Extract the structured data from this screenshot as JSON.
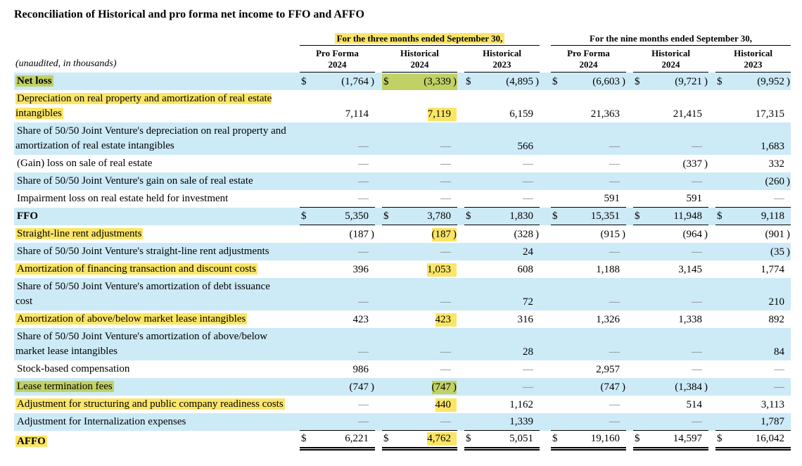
{
  "title": "Reconciliation of Historical and pro forma net income to FFO and AFFO",
  "highlight_colors": {
    "yellow": "#fbe567",
    "green": "#c1d166",
    "row_shade_blue": "#cdeaf7"
  },
  "table": {
    "unaudited_note": "(unaudited, in thousands)",
    "groups": [
      {
        "label": "For the three months ended September 30,",
        "highlight": "yellow"
      },
      {
        "label": "For the nine months ended September 30,",
        "highlight": null
      }
    ],
    "columns": [
      {
        "line1": "Pro Forma",
        "line2": "2024"
      },
      {
        "line1": "Historical",
        "line2": "2024"
      },
      {
        "line1": "Historical",
        "line2": "2023"
      },
      {
        "line1": "Pro Forma",
        "line2": "2024"
      },
      {
        "line1": "Historical",
        "line2": "2024"
      },
      {
        "line1": "Historical",
        "line2": "2023"
      }
    ],
    "rows": [
      {
        "label": "Net loss",
        "bold": true,
        "shaded": true,
        "dollar": true,
        "label_hl": "green",
        "values": [
          "(1,764)",
          "(3,339)",
          "(4,895)",
          "(6,603)",
          "(9,721)",
          "(9,952)"
        ],
        "val_hl": {
          "col": 1,
          "color": "green",
          "full_cell": true
        },
        "rule": null
      },
      {
        "label": "Depreciation on real property and amortization of real estate intangibles",
        "bold": false,
        "shaded": false,
        "dollar": false,
        "label_hl": "yellow",
        "values": [
          "7,114",
          "7,119",
          "6,159",
          "21,363",
          "21,415",
          "17,315"
        ],
        "val_hl": {
          "col": 1,
          "color": "yellow",
          "full_cell": false
        },
        "rule": null
      },
      {
        "label": "Share of 50/50 Joint Venture's depreciation on real property and amortization of real estate intangibles",
        "bold": false,
        "shaded": true,
        "dollar": false,
        "label_hl": null,
        "values": [
          "—",
          "—",
          "566",
          "—",
          "—",
          "1,683"
        ],
        "val_hl": null,
        "rule": null
      },
      {
        "label": "(Gain) loss on sale of real estate",
        "bold": false,
        "shaded": false,
        "dollar": false,
        "label_hl": null,
        "values": [
          "—",
          "—",
          "—",
          "—",
          "(337)",
          "332"
        ],
        "val_hl": null,
        "rule": null
      },
      {
        "label": "Share of 50/50 Joint Venture's gain on sale of real estate",
        "bold": false,
        "shaded": true,
        "dollar": false,
        "label_hl": null,
        "values": [
          "—",
          "—",
          "—",
          "—",
          "—",
          "(260)"
        ],
        "val_hl": null,
        "rule": null
      },
      {
        "label": "Impairment loss on real estate held for investment",
        "bold": false,
        "shaded": false,
        "dollar": false,
        "label_hl": null,
        "values": [
          "—",
          "—",
          "—",
          "591",
          "591",
          "—"
        ],
        "val_hl": null,
        "rule": "single"
      },
      {
        "label": "FFO",
        "bold": true,
        "shaded": true,
        "dollar": true,
        "label_hl": null,
        "values": [
          "5,350",
          "3,780",
          "1,830",
          "15,351",
          "11,948",
          "9,118"
        ],
        "val_hl": null,
        "rule": "single"
      },
      {
        "label": "Straight-line rent adjustments",
        "bold": false,
        "shaded": false,
        "dollar": false,
        "label_hl": "yellow",
        "values": [
          "(187)",
          "(187)",
          "(328)",
          "(915)",
          "(964)",
          "(901)"
        ],
        "val_hl": {
          "col": 1,
          "color": "yellow",
          "full_cell": false
        },
        "rule": null
      },
      {
        "label": "Share of 50/50 Joint Venture's straight-line rent adjustments",
        "bold": false,
        "shaded": true,
        "dollar": false,
        "label_hl": null,
        "values": [
          "—",
          "—",
          "24",
          "—",
          "—",
          "(35)"
        ],
        "val_hl": null,
        "rule": null
      },
      {
        "label": "Amortization of financing transaction and discount costs",
        "bold": false,
        "shaded": false,
        "dollar": false,
        "label_hl": "yellow",
        "values": [
          "396",
          "1,053",
          "608",
          "1,188",
          "3,145",
          "1,774"
        ],
        "val_hl": {
          "col": 1,
          "color": "yellow",
          "full_cell": false
        },
        "rule": null
      },
      {
        "label": "Share of 50/50 Joint Venture's amortization of debt issuance cost",
        "bold": false,
        "shaded": true,
        "dollar": false,
        "label_hl": null,
        "values": [
          "—",
          "—",
          "72",
          "—",
          "—",
          "210"
        ],
        "val_hl": null,
        "rule": null
      },
      {
        "label": "Amortization of above/below market lease intangibles",
        "bold": false,
        "shaded": false,
        "dollar": false,
        "label_hl": "yellow",
        "values": [
          "423",
          "423",
          "316",
          "1,326",
          "1,338",
          "892"
        ],
        "val_hl": {
          "col": 1,
          "color": "yellow",
          "full_cell": false
        },
        "rule": null
      },
      {
        "label": "Share of 50/50 Joint Venture's amortization of above/below market lease intangibles",
        "bold": false,
        "shaded": true,
        "dollar": false,
        "label_hl": null,
        "values": [
          "—",
          "—",
          "28",
          "—",
          "—",
          "84"
        ],
        "val_hl": null,
        "rule": null
      },
      {
        "label": "Stock-based compensation",
        "bold": false,
        "shaded": false,
        "dollar": false,
        "label_hl": null,
        "values": [
          "986",
          "—",
          "—",
          "2,957",
          "—",
          "—"
        ],
        "val_hl": null,
        "rule": null
      },
      {
        "label": "Lease termination fees",
        "bold": false,
        "shaded": true,
        "dollar": false,
        "label_hl": "green",
        "values": [
          "(747)",
          "(747)",
          "—",
          "(747)",
          "(1,384)",
          "—"
        ],
        "val_hl": {
          "col": 1,
          "color": "green",
          "full_cell": false
        },
        "rule": null
      },
      {
        "label": "Adjustment for structuring and public company readiness costs",
        "bold": false,
        "shaded": false,
        "dollar": false,
        "label_hl": "yellow",
        "values": [
          "—",
          "440",
          "1,162",
          "—",
          "514",
          "3,113"
        ],
        "val_hl": {
          "col": 1,
          "color": "yellow",
          "full_cell": false
        },
        "rule": null
      },
      {
        "label": "Adjustment for Internalization expenses",
        "bold": false,
        "shaded": true,
        "dollar": false,
        "label_hl": null,
        "values": [
          "—",
          "—",
          "1,339",
          "—",
          "—",
          "1,787"
        ],
        "val_hl": null,
        "rule": "single"
      },
      {
        "label": "AFFO",
        "bold": true,
        "shaded": false,
        "dollar": true,
        "label_hl": "yellow",
        "values": [
          "6,221",
          "4,762",
          "5,051",
          "19,160",
          "14,597",
          "16,042"
        ],
        "val_hl": {
          "col": 1,
          "color": "yellow",
          "full_cell": false
        },
        "rule": "double"
      }
    ]
  }
}
